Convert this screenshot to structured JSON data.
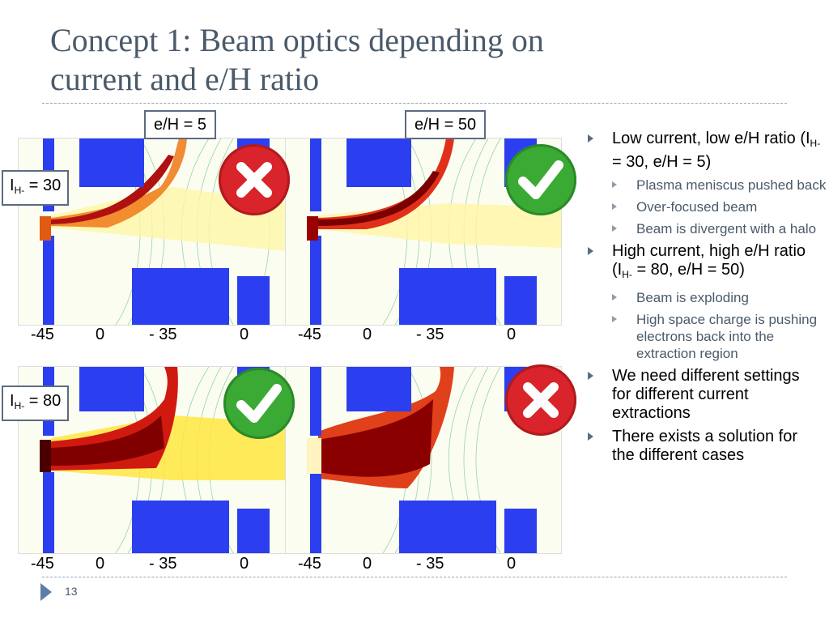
{
  "title_line1": "Concept 1: Beam optics depending on",
  "title_line2": "current and e/H ratio",
  "labels": {
    "eh_left": "e/H = 5",
    "eh_right": "e/H = 50",
    "ih_top_prefix": "I",
    "ih_top_sub": "H-",
    "ih_top_val": " = 30",
    "ih_bottom_prefix": "I",
    "ih_bottom_sub": "H-",
    "ih_bottom_val": " = 80"
  },
  "axis_labels": [
    "-45",
    "0",
    "- 35",
    "0"
  ],
  "bullets": {
    "b1_line": "Low current, low e/H ratio (I",
    "b1_sub": "H-",
    "b1_tail": " = 30, e/H = 5)",
    "b1_sub1": "Plasma meniscus pushed back",
    "b1_sub2": "Over-focused beam",
    "b1_sub3": "Beam is divergent with a halo",
    "b2_line": "High current, high e/H ratio (I",
    "b2_sub": "H-",
    "b2_tail": " = 80, e/H = 50)",
    "b2_sub1": "Beam is exploding",
    "b2_sub2": "High space charge is pushing electrons back into the extraction region",
    "b3": "We need different settings for different current extractions",
    "b4": "There exists a solution for the different cases"
  },
  "page_number": "13",
  "results": [
    {
      "ih": 30,
      "eh": 5,
      "ok": false
    },
    {
      "ih": 30,
      "eh": 50,
      "ok": true
    },
    {
      "ih": 80,
      "eh": 5,
      "ok": true
    },
    {
      "ih": 80,
      "eh": 50,
      "ok": false
    }
  ],
  "colors": {
    "electrode": "#2b3ff0",
    "ok": "#3aaa35",
    "bad": "#d8242a",
    "beam_core": "#8a0000",
    "beam_halo": "#ffee55"
  }
}
